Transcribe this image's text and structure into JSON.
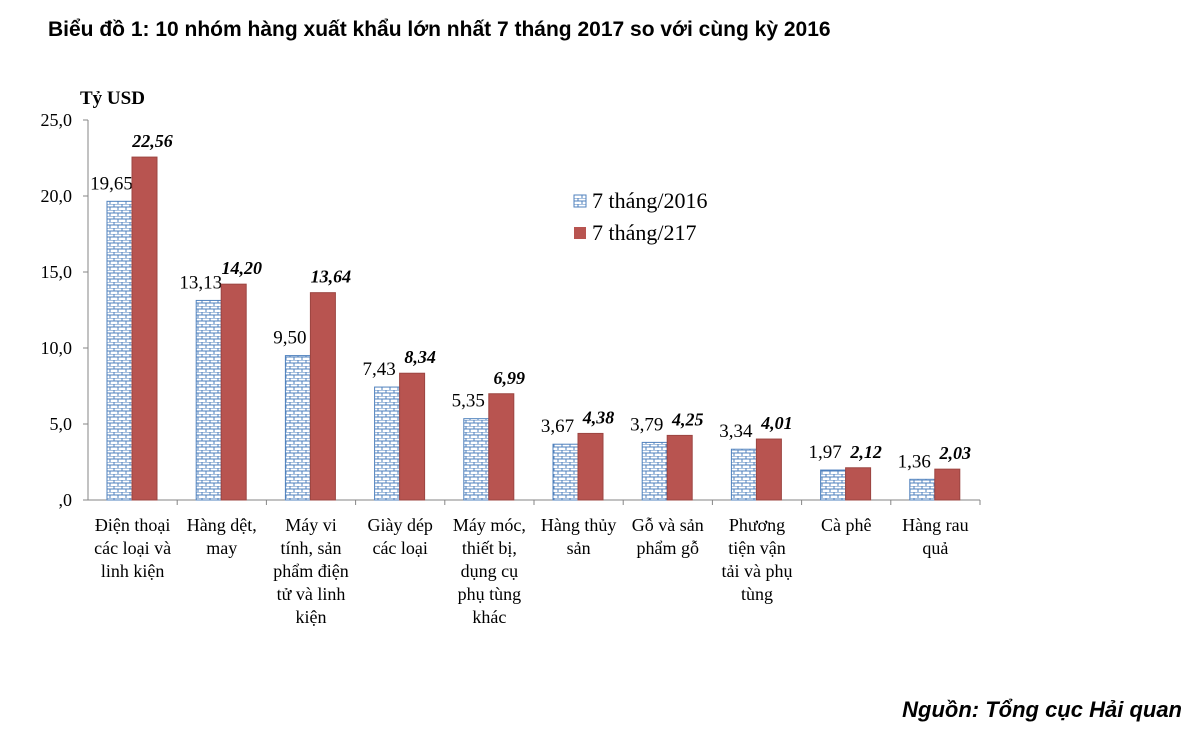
{
  "title": "Biểu đồ 1: 10 nhóm hàng xuất khẩu lớn nhất 7 tháng 2017 so với cùng kỳ 2016",
  "source": "Nguồn: Tổng cục Hải quan",
  "chart_data": {
    "type": "bar",
    "title": "Biểu đồ 1: 10 nhóm hàng xuất khẩu lớn nhất 7 tháng 2017 so với cùng kỳ 2016",
    "ylabel": "Tỷ USD",
    "xlabel": "",
    "ylim": [
      0,
      25
    ],
    "yticks": [
      ",0",
      "5,0",
      "10,0",
      "15,0",
      "20,0",
      "25,0"
    ],
    "grid": false,
    "legend": "upper-center-right",
    "categories": [
      [
        "Điện thoại",
        "các loại và",
        "linh kiện"
      ],
      [
        "Hàng dệt,",
        "may"
      ],
      [
        "Máy vi",
        "tính, sản",
        "phẩm điện",
        "tử và linh",
        "kiện"
      ],
      [
        "Giày dép",
        "các loại"
      ],
      [
        "Máy móc,",
        "thiết bị,",
        "dụng cụ",
        "phụ tùng",
        "khác"
      ],
      [
        "Hàng thủy",
        "sản"
      ],
      [
        "Gỗ và sản",
        "phẩm gỗ"
      ],
      [
        "Phương",
        "tiện vận",
        "tải và phụ",
        "tùng"
      ],
      [
        "Cà phê"
      ],
      [
        "Hàng rau",
        "quả"
      ]
    ],
    "series": [
      {
        "name": "7 tháng/2016",
        "color": "#4f81bd",
        "pattern": "brick",
        "values": [
          19.65,
          13.13,
          9.5,
          7.43,
          5.35,
          3.67,
          3.79,
          3.34,
          1.97,
          1.36
        ],
        "labels": [
          "19,65",
          "13,13",
          "9,50",
          "7,43",
          "5,35",
          "3,67",
          "3,79",
          "3,34",
          "1,97",
          "1,36"
        ]
      },
      {
        "name": "7 tháng/217",
        "color": "#b85450",
        "values": [
          22.56,
          14.2,
          13.64,
          8.34,
          6.99,
          4.38,
          4.25,
          4.01,
          2.12,
          2.03
        ],
        "labels": [
          "22,56",
          "14,20",
          "13,64",
          "8,34",
          "6,99",
          "4,38",
          "4,25",
          "4,01",
          "2,12",
          "2,03"
        ]
      }
    ]
  }
}
